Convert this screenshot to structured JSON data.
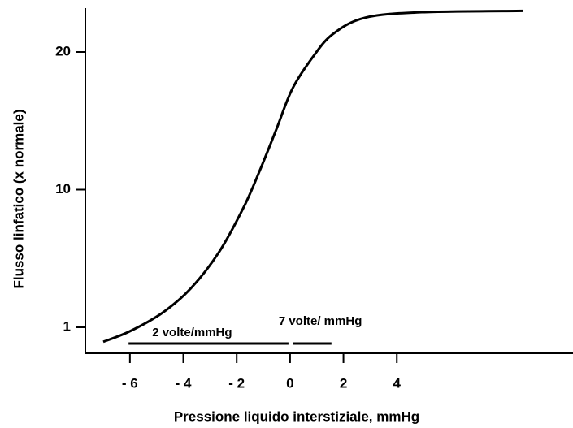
{
  "chart_data": {
    "type": "line",
    "x_label": "Pressione liquido interstiziale, mmHg",
    "y_label": "Flusso linfatico (x normale)",
    "x": [
      -7.0,
      -6.0,
      -4.78,
      -3.72,
      -2.66,
      -1.74,
      -1.14,
      -0.53,
      0.08,
      0.84,
      1.6,
      2.81,
      4.94,
      8.74
    ],
    "series": [
      {
        "color": "#000000",
        "values": [
          0.05,
          0.74,
          1.95,
          3.54,
          5.92,
          8.84,
          11.36,
          14.3,
          17.3,
          19.6,
          21.3,
          22.5,
          22.9,
          23.0
        ]
      }
    ],
    "xlim": [
      -7.67,
      10.6
    ],
    "xticks": [
      {
        "value": -6,
        "label": "- 6"
      },
      {
        "value": -4,
        "label": "- 4"
      },
      {
        "value": -2,
        "label": "- 2"
      },
      0,
      2,
      4
    ],
    "ylim": [
      -0.7,
      23.2
    ],
    "yticks": [
      1,
      10,
      20
    ],
    "annotations": [
      {
        "text": "2 volte/mmHg",
        "x": [
          -6.05,
          -0.06
        ]
      },
      {
        "text": "7 volte/ mmHg",
        "x": [
          0.12,
          1.55
        ]
      }
    ]
  }
}
